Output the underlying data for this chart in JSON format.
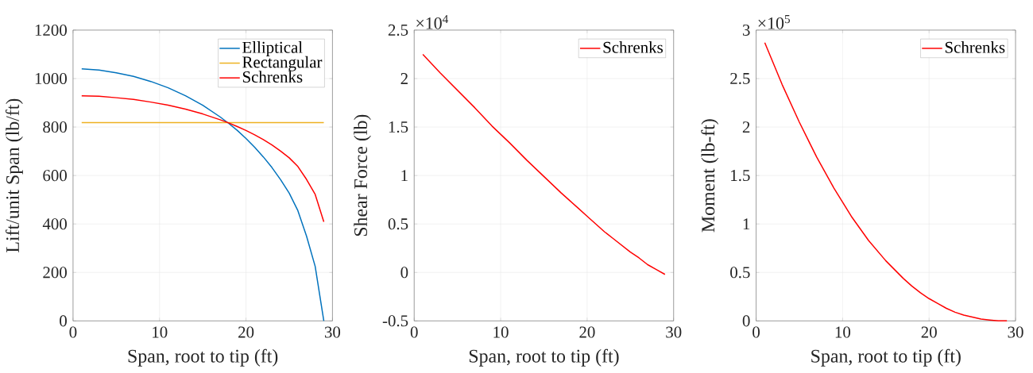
{
  "chart_data": [
    {
      "type": "line",
      "xlabel": "Span, root to tip (ft)",
      "ylabel": "Lift/unit Span (lb/ft)",
      "x": [
        1,
        3,
        5,
        7,
        9,
        11,
        13,
        15,
        17,
        18,
        19,
        20,
        21,
        22,
        23,
        24,
        25,
        26,
        27,
        28,
        29
      ],
      "series": [
        {
          "name": "Elliptical",
          "color": "#0072bd",
          "values": [
            1040,
            1035,
            1024,
            1009,
            988,
            962,
            929,
            890,
            842,
            815,
            786,
            753,
            717,
            677,
            633,
            583,
            527,
            455,
            350,
            225,
            0
          ]
        },
        {
          "name": "Rectangular",
          "color": "#edb120",
          "values": [
            818,
            818,
            818,
            818,
            818,
            818,
            818,
            818,
            818,
            818,
            818,
            818,
            818,
            818,
            818,
            818,
            818,
            818,
            818,
            818,
            818
          ]
        },
        {
          "name": "Schrenks",
          "color": "#ff0000",
          "values": [
            929,
            927,
            921,
            914,
            903,
            890,
            874,
            854,
            830,
            817,
            802,
            786,
            768,
            748,
            726,
            701,
            673,
            637,
            584,
            522,
            409
          ]
        }
      ],
      "xlim": [
        0,
        30
      ],
      "xticks": [
        0,
        10,
        20,
        30
      ],
      "ylim": [
        0,
        1200
      ],
      "yticks": [
        0,
        200,
        400,
        600,
        800,
        1000,
        1200
      ],
      "grid": true,
      "legend": "top right"
    },
    {
      "type": "line",
      "xlabel": "Span, root to tip (ft)",
      "ylabel": "Shear Force (lb)",
      "annotations": [
        "×10$^{4}$"
      ],
      "x": [
        1,
        3,
        5,
        7,
        9,
        11,
        13,
        15,
        17,
        18,
        19,
        20,
        21,
        22,
        23,
        24,
        25,
        26,
        27,
        28,
        29
      ],
      "series": [
        {
          "name": "Schrenks",
          "color": "#ff0000",
          "values": [
            2.25,
            2.06,
            1.88,
            1.7,
            1.51,
            1.34,
            1.16,
            0.99,
            0.82,
            0.74,
            0.66,
            0.58,
            0.5,
            0.42,
            0.35,
            0.28,
            0.21,
            0.15,
            0.08,
            0.03,
            -0.02
          ]
        }
      ],
      "xlim": [
        0,
        30
      ],
      "xticks": [
        0,
        10,
        20,
        30
      ],
      "ylim": [
        -0.5,
        2.5
      ],
      "yticks": [
        -0.5,
        0,
        0.5,
        1,
        1.5,
        2,
        2.5
      ],
      "grid": true,
      "legend": "top right"
    },
    {
      "type": "line",
      "xlabel": "Span, root to tip (ft)",
      "ylabel": "Moment (lb-ft)",
      "annotations": [
        "×10$^{5}$"
      ],
      "x": [
        1,
        3,
        5,
        7,
        9,
        11,
        13,
        15,
        17,
        18,
        19,
        20,
        21,
        22,
        23,
        24,
        25,
        26,
        27,
        28,
        29
      ],
      "series": [
        {
          "name": "Schrenks",
          "color": "#ff0000",
          "values": [
            2.87,
            2.44,
            2.05,
            1.69,
            1.37,
            1.08,
            0.83,
            0.62,
            0.44,
            0.36,
            0.29,
            0.23,
            0.18,
            0.13,
            0.09,
            0.06,
            0.04,
            0.02,
            0.01,
            0,
            0
          ]
        }
      ],
      "xlim": [
        0,
        30
      ],
      "xticks": [
        0,
        10,
        20,
        30
      ],
      "ylim": [
        0,
        3
      ],
      "yticks": [
        0,
        0.5,
        1,
        1.5,
        2,
        2.5,
        3
      ],
      "grid": true,
      "legend": "top right"
    }
  ]
}
